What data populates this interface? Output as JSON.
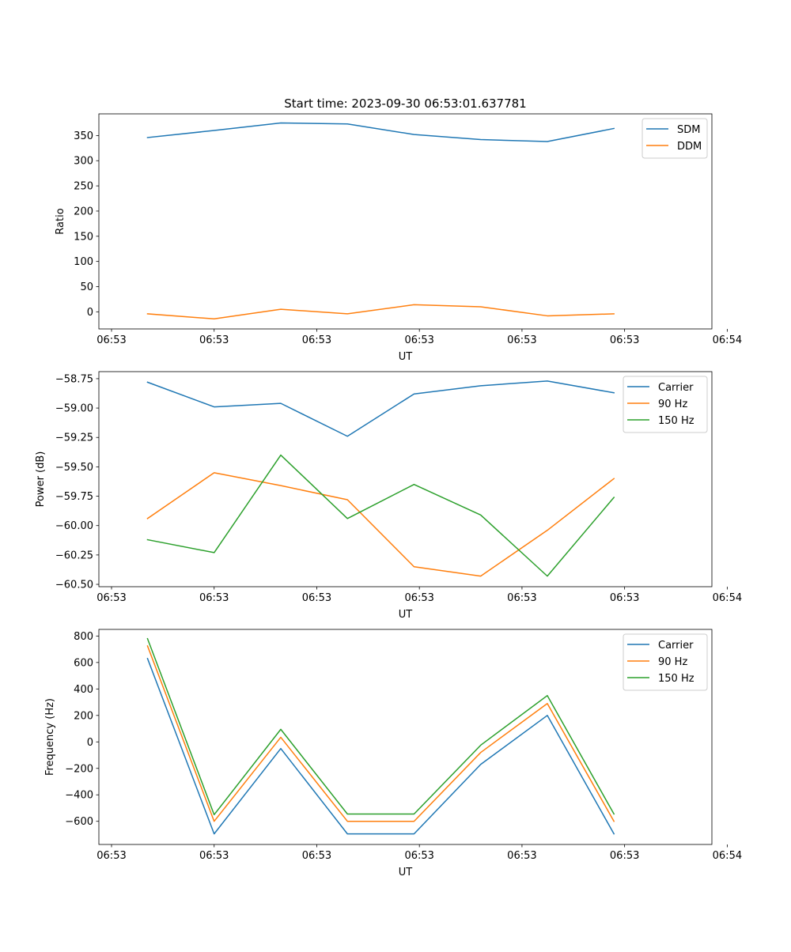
{
  "figure_title": "Start time: 2023-09-30 06:53:01.637781",
  "chart_data": [
    {
      "type": "line",
      "title": "Start time: 2023-09-30 06:53:01.637781",
      "xlabel": "UT",
      "ylabel": "Ratio",
      "x": [
        1,
        2,
        3,
        4,
        5,
        6,
        7,
        8
      ],
      "xlim": [
        0.27,
        9.47
      ],
      "xticks": [
        0.46,
        2.0,
        3.54,
        5.08,
        6.62,
        8.16,
        9.7
      ],
      "xtick_labels": [
        "06:53",
        "06:53",
        "06:53",
        "06:53",
        "06:53",
        "06:53",
        "06:54"
      ],
      "ylim": [
        -34,
        393
      ],
      "yticks": [
        0,
        50,
        100,
        150,
        200,
        250,
        300,
        350
      ],
      "ytick_labels": [
        "0",
        "50",
        "100",
        "150",
        "200",
        "250",
        "300",
        "350"
      ],
      "legend_position": "top-right",
      "series": [
        {
          "name": "SDM",
          "color": "#1f77b4",
          "values": [
            346,
            360,
            375,
            373,
            352,
            342,
            338,
            364
          ]
        },
        {
          "name": "DDM",
          "color": "#ff7f0e",
          "values": [
            -4,
            -14,
            5,
            -4,
            14,
            10,
            -8,
            -4
          ]
        }
      ]
    },
    {
      "type": "line",
      "title": "",
      "xlabel": "UT",
      "ylabel": "Power (dB)",
      "x": [
        1,
        2,
        3,
        4,
        5,
        6,
        7,
        8
      ],
      "xlim": [
        0.27,
        9.47
      ],
      "xticks": [
        0.46,
        2.0,
        3.54,
        5.08,
        6.62,
        8.16,
        9.7
      ],
      "xtick_labels": [
        "06:53",
        "06:53",
        "06:53",
        "06:53",
        "06:53",
        "06:53",
        "06:54"
      ],
      "ylim": [
        -60.52,
        -58.69
      ],
      "yticks": [
        -60.5,
        -60.25,
        -60.0,
        -59.75,
        -59.5,
        -59.25,
        -59.0,
        -58.75
      ],
      "ytick_labels": [
        "−60.50",
        "−60.25",
        "−60.00",
        "−59.75",
        "−59.50",
        "−59.25",
        "−59.00",
        "−58.75"
      ],
      "legend_position": "top-right",
      "series": [
        {
          "name": "Carrier",
          "color": "#1f77b4",
          "values": [
            -58.78,
            -58.99,
            -58.96,
            -59.24,
            -58.88,
            -58.81,
            -58.77,
            -58.87
          ]
        },
        {
          "name": "90 Hz",
          "color": "#ff7f0e",
          "values": [
            -59.94,
            -59.55,
            -59.66,
            -59.78,
            -60.35,
            -60.43,
            -60.04,
            -59.6
          ]
        },
        {
          "name": "150 Hz",
          "color": "#2ca02c",
          "values": [
            -60.12,
            -60.23,
            -59.4,
            -59.94,
            -59.65,
            -59.91,
            -60.43,
            -59.76
          ]
        }
      ]
    },
    {
      "type": "line",
      "title": "",
      "xlabel": "UT",
      "ylabel": "Frequency (Hz)",
      "x": [
        1,
        2,
        3,
        4,
        5,
        6,
        7,
        8
      ],
      "xlim": [
        0.27,
        9.47
      ],
      "xticks": [
        0.46,
        2.0,
        3.54,
        5.08,
        6.62,
        8.16,
        9.7
      ],
      "xtick_labels": [
        "06:53",
        "06:53",
        "06:53",
        "06:53",
        "06:53",
        "06:53",
        "06:54"
      ],
      "ylim": [
        -775,
        850
      ],
      "yticks": [
        -600,
        -400,
        -200,
        0,
        200,
        400,
        600,
        800
      ],
      "ytick_labels": [
        "−600",
        "−400",
        "−200",
        "0",
        "200",
        "400",
        "600",
        "800"
      ],
      "legend_position": "top-right",
      "series": [
        {
          "name": "Carrier",
          "color": "#1f77b4",
          "values": [
            630,
            -695,
            -50,
            -695,
            -695,
            -170,
            200,
            -695
          ]
        },
        {
          "name": "90 Hz",
          "color": "#ff7f0e",
          "values": [
            725,
            -600,
            35,
            -600,
            -600,
            -80,
            290,
            -600
          ]
        },
        {
          "name": "150 Hz",
          "color": "#2ca02c",
          "values": [
            780,
            -550,
            95,
            -545,
            -545,
            -25,
            350,
            -545
          ]
        }
      ]
    }
  ]
}
